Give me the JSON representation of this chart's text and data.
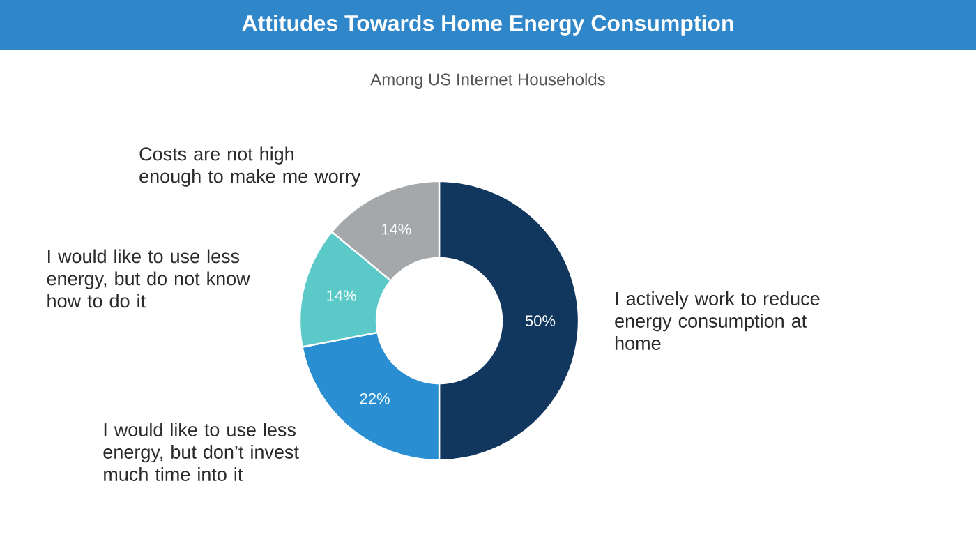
{
  "chart_data": {
    "type": "donut",
    "title": "Attitudes Towards Home Energy Consumption",
    "subtitle": "Among US Internet Households",
    "categories": [
      "I actively work to reduce energy consumption at home",
      "I would like to use less energy, but don’t invest much time into it",
      "I would like to use less energy, but do not know how to do it",
      "Costs are not high enough to make me worry"
    ],
    "values": [
      50,
      22,
      14,
      14
    ],
    "colors": [
      "#12375e",
      "#2a8fd2",
      "#5cc9c9",
      "#a5a8ab"
    ],
    "value_labels": [
      "50%",
      "22%",
      "14%",
      "14%"
    ]
  }
}
